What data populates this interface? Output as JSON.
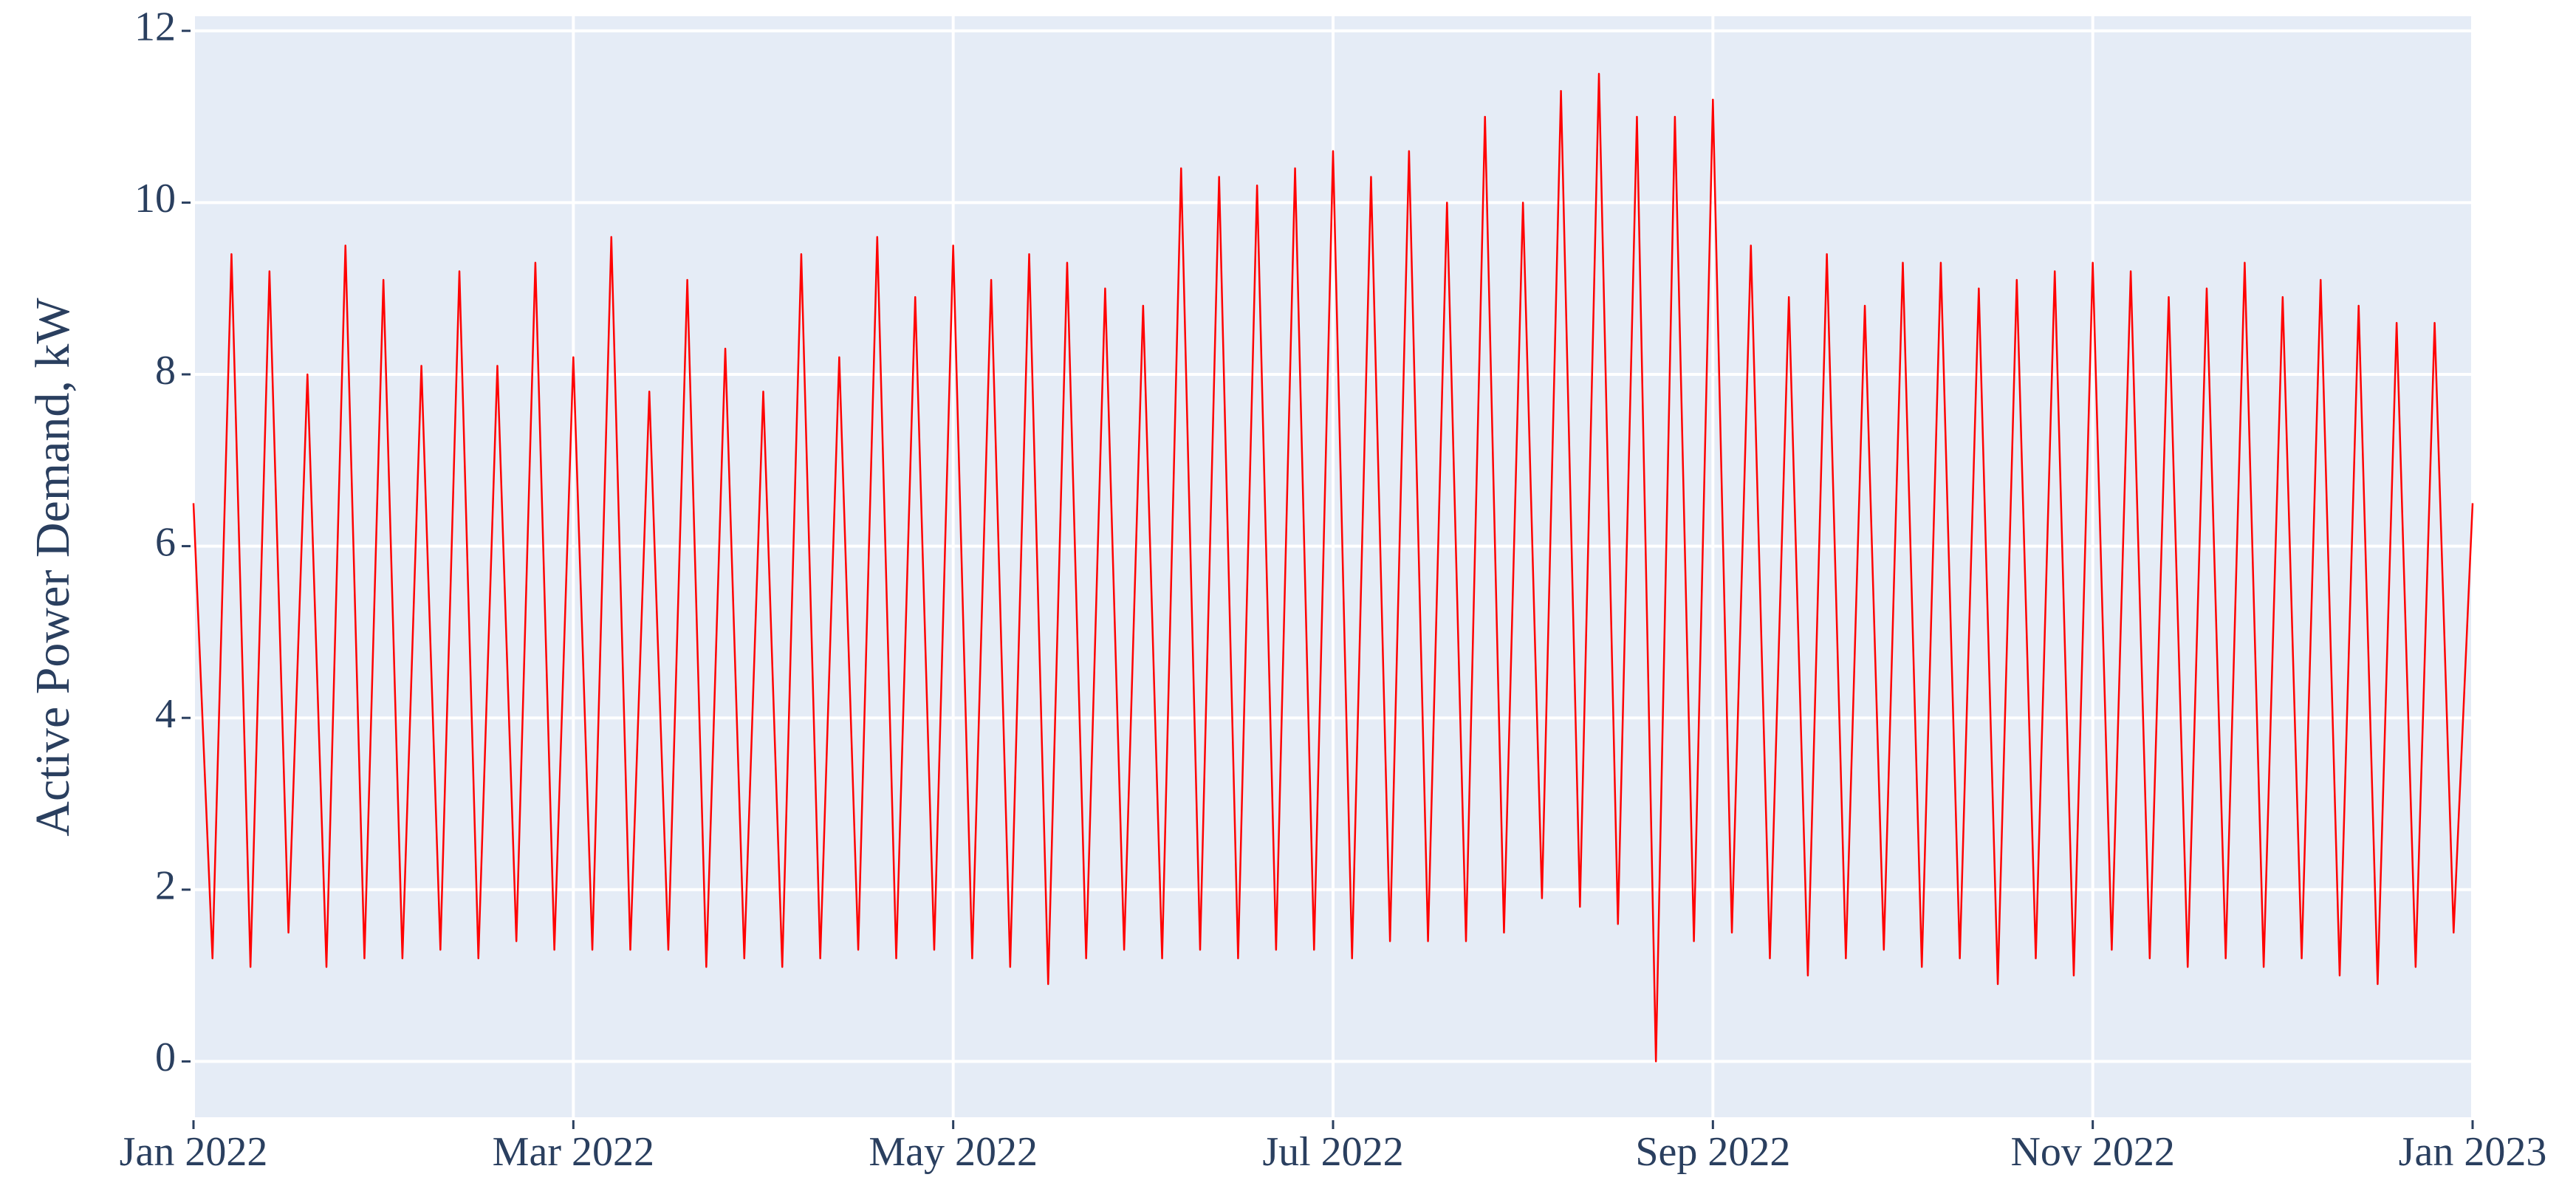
{
  "chart_data": {
    "type": "line",
    "y_label": "Active Power Demand, kW",
    "xlim": [
      0,
      12
    ],
    "xticks": [
      {
        "value": 0,
        "label": "Jan 2022"
      },
      {
        "value": 2,
        "label": "Mar 2022"
      },
      {
        "value": 4,
        "label": "May 2022"
      },
      {
        "value": 6,
        "label": "Jul 2022"
      },
      {
        "value": 8,
        "label": "Sep 2022"
      },
      {
        "value": 10,
        "label": "Nov 2022"
      },
      {
        "value": 12,
        "label": "Jan 2023"
      }
    ],
    "ylim": [
      -0.65,
      12.17
    ],
    "yticks": [
      0,
      2,
      4,
      6,
      8,
      10,
      12
    ],
    "grid": true,
    "background": "#e5ecf6",
    "x": [
      0,
      0.1,
      0.2,
      0.3,
      0.4,
      0.5,
      0.6,
      0.7,
      0.8,
      0.9,
      1,
      1.1,
      1.2,
      1.3,
      1.4,
      1.5,
      1.6,
      1.7,
      1.8,
      1.9,
      2,
      2.1,
      2.2,
      2.3,
      2.4,
      2.5,
      2.6,
      2.7,
      2.8,
      2.9,
      3,
      3.1,
      3.2,
      3.3,
      3.4,
      3.5,
      3.6,
      3.7,
      3.8,
      3.9,
      4,
      4.1,
      4.2,
      4.3,
      4.4,
      4.5,
      4.6,
      4.7,
      4.8,
      4.9,
      5,
      5.1,
      5.2,
      5.3,
      5.4,
      5.5,
      5.6,
      5.7,
      5.8,
      5.9,
      6,
      6.1,
      6.2,
      6.3,
      6.4,
      6.5,
      6.6,
      6.7,
      6.8,
      6.9,
      7,
      7.1,
      7.2,
      7.3,
      7.4,
      7.5,
      7.6,
      7.7,
      7.8,
      7.9,
      8,
      8.1,
      8.2,
      8.3,
      8.4,
      8.5,
      8.6,
      8.7,
      8.8,
      8.9,
      9,
      9.1,
      9.2,
      9.3,
      9.4,
      9.5,
      9.6,
      9.7,
      9.8,
      9.9,
      10,
      10.1,
      10.2,
      10.3,
      10.4,
      10.5,
      10.6,
      10.7,
      10.8,
      10.9,
      11,
      11.1,
      11.2,
      11.3,
      11.4,
      11.5,
      11.6,
      11.7,
      11.8,
      11.9,
      12
    ],
    "series": [
      {
        "color": "#ff0000",
        "values": [
          6.5,
          1.2,
          9.4,
          1.1,
          9.2,
          1.5,
          8.0,
          1.1,
          9.5,
          1.2,
          9.1,
          1.2,
          8.1,
          1.3,
          9.2,
          1.2,
          8.1,
          1.4,
          9.3,
          1.3,
          8.2,
          1.3,
          9.6,
          1.3,
          7.8,
          1.3,
          9.1,
          1.1,
          8.3,
          1.2,
          7.8,
          1.1,
          9.4,
          1.2,
          8.2,
          1.3,
          9.6,
          1.2,
          8.9,
          1.3,
          9.5,
          1.2,
          9.1,
          1.1,
          9.4,
          0.9,
          9.3,
          1.2,
          9.0,
          1.3,
          8.8,
          1.2,
          10.4,
          1.3,
          10.3,
          1.2,
          10.2,
          1.3,
          10.4,
          1.3,
          10.6,
          1.2,
          10.3,
          1.4,
          10.6,
          1.4,
          10.0,
          1.4,
          11.0,
          1.5,
          10.0,
          1.9,
          11.3,
          1.8,
          11.5,
          1.6,
          11.0,
          0,
          11.0,
          1.4,
          11.2,
          1.5,
          9.5,
          1.2,
          8.9,
          1.0,
          9.4,
          1.2,
          8.8,
          1.3,
          9.3,
          1.1,
          9.3,
          1.2,
          9.0,
          0.9,
          9.1,
          1.2,
          9.2,
          1.0,
          9.3,
          1.3,
          9.2,
          1.2,
          8.9,
          1.1,
          9.0,
          1.2,
          9.3,
          1.1,
          8.9,
          1.2,
          9.1,
          1.0,
          8.8,
          0.9,
          8.6,
          1.1,
          8.6,
          1.5,
          6.5
        ]
      }
    ]
  }
}
